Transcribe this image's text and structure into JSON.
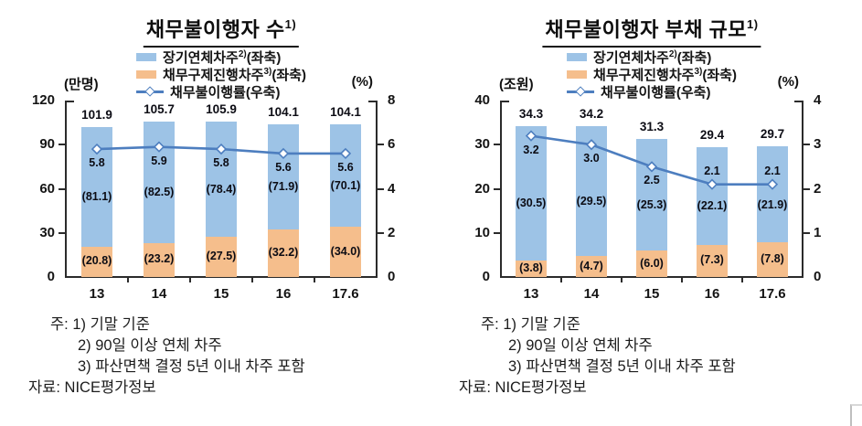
{
  "colors": {
    "bar_blue": "#9DC3E6",
    "bar_orange": "#F5BE8C",
    "line_blue": "#4D7EBF",
    "axis": "#2b2b2b",
    "text": "#141414"
  },
  "chart_data": [
    {
      "type": "stacked-bar+line",
      "title": {
        "text": "채무불이행자 수",
        "sup": "1)"
      },
      "legend_position": "top",
      "categories": [
        "13",
        "14",
        "15",
        "16",
        "17.6"
      ],
      "axis_left": {
        "unit": "(만명)",
        "min": 0,
        "max": 120,
        "ticks": [
          0,
          30,
          60,
          90,
          120
        ]
      },
      "axis_right": {
        "unit": "(%)",
        "min": 0,
        "max": 8,
        "ticks": [
          0,
          2,
          4,
          6,
          8
        ]
      },
      "series": [
        {
          "name": "장기연체차주",
          "name_sup": "2)",
          "name_suffix": "(좌축)",
          "type": "bar",
          "stack": "top",
          "color_key": "bar_blue",
          "values": [
            81.1,
            82.5,
            78.4,
            71.9,
            70.1
          ],
          "labels": [
            "(81.1)",
            "(82.5)",
            "(78.4)",
            "(71.9)",
            "(70.1)"
          ]
        },
        {
          "name": "채무구제진행차주",
          "name_sup": "3)",
          "name_suffix": "(좌축)",
          "type": "bar",
          "stack": "bottom",
          "color_key": "bar_orange",
          "values": [
            20.8,
            23.2,
            27.5,
            32.2,
            34.0
          ],
          "labels": [
            "(20.8)",
            "(23.2)",
            "(27.5)",
            "(32.2)",
            "(34.0)"
          ]
        },
        {
          "name": "채무불이행률",
          "name_sup": "",
          "name_suffix": "(우축)",
          "type": "line",
          "axis": "right",
          "color_key": "line_blue",
          "values": [
            5.8,
            5.9,
            5.8,
            5.6,
            5.6
          ],
          "labels": [
            "5.8",
            "5.9",
            "5.8",
            "5.6",
            "5.6"
          ]
        }
      ],
      "totals": {
        "values": [
          101.9,
          105.7,
          105.9,
          104.1,
          104.1
        ],
        "labels": [
          "101.9",
          "105.7",
          "105.9",
          "104.1",
          "104.1"
        ]
      },
      "notes": {
        "prefix": "주:",
        "items": [
          "1) 기말 기준",
          "2) 90일 이상 연체 차주",
          "3) 파산면책 결정 5년 이내 차주 포함"
        ],
        "source_label": "자료:",
        "source": "NICE평가정보"
      }
    },
    {
      "type": "stacked-bar+line",
      "title": {
        "text": "채무불이행자 부채 규모",
        "sup": "1)"
      },
      "legend_position": "top",
      "categories": [
        "13",
        "14",
        "15",
        "16",
        "17.6"
      ],
      "axis_left": {
        "unit": "(조원)",
        "min": 0,
        "max": 40,
        "ticks": [
          0,
          10,
          20,
          30,
          40
        ]
      },
      "axis_right": {
        "unit": "(%)",
        "min": 0,
        "max": 4,
        "ticks": [
          0,
          1,
          2,
          3,
          4
        ]
      },
      "series": [
        {
          "name": "장기연체차주",
          "name_sup": "2)",
          "name_suffix": "(좌축)",
          "type": "bar",
          "stack": "top",
          "color_key": "bar_blue",
          "values": [
            30.5,
            29.5,
            25.3,
            22.1,
            21.9
          ],
          "labels": [
            "(30.5)",
            "(29.5)",
            "(25.3)",
            "(22.1)",
            "(21.9)"
          ]
        },
        {
          "name": "채무구제진행차주",
          "name_sup": "3)",
          "name_suffix": "(좌축)",
          "type": "bar",
          "stack": "bottom",
          "color_key": "bar_orange",
          "values": [
            3.8,
            4.7,
            6.0,
            7.3,
            7.8
          ],
          "labels": [
            "(3.8)",
            "(4.7)",
            "(6.0)",
            "(7.3)",
            "(7.8)"
          ]
        },
        {
          "name": "채무불이행률",
          "name_sup": "",
          "name_suffix": "(우축)",
          "type": "line",
          "axis": "right",
          "color_key": "line_blue",
          "values": [
            3.2,
            3.0,
            2.5,
            2.1,
            2.1
          ],
          "labels": [
            "3.2",
            "3.0",
            "2.5",
            "2.1",
            "2.1"
          ]
        }
      ],
      "totals": {
        "values": [
          34.3,
          34.2,
          31.3,
          29.4,
          29.7
        ],
        "labels": [
          "34.3",
          "34.2",
          "31.3",
          "29.4",
          "29.7"
        ]
      },
      "notes": {
        "prefix": "주:",
        "items": [
          "1) 기말 기준",
          "2) 90일 이상 연체 차주",
          "3) 파산면책 결정 5년 이내 차주 포함"
        ],
        "source_label": "자료:",
        "source": "NICE평가정보"
      }
    }
  ]
}
